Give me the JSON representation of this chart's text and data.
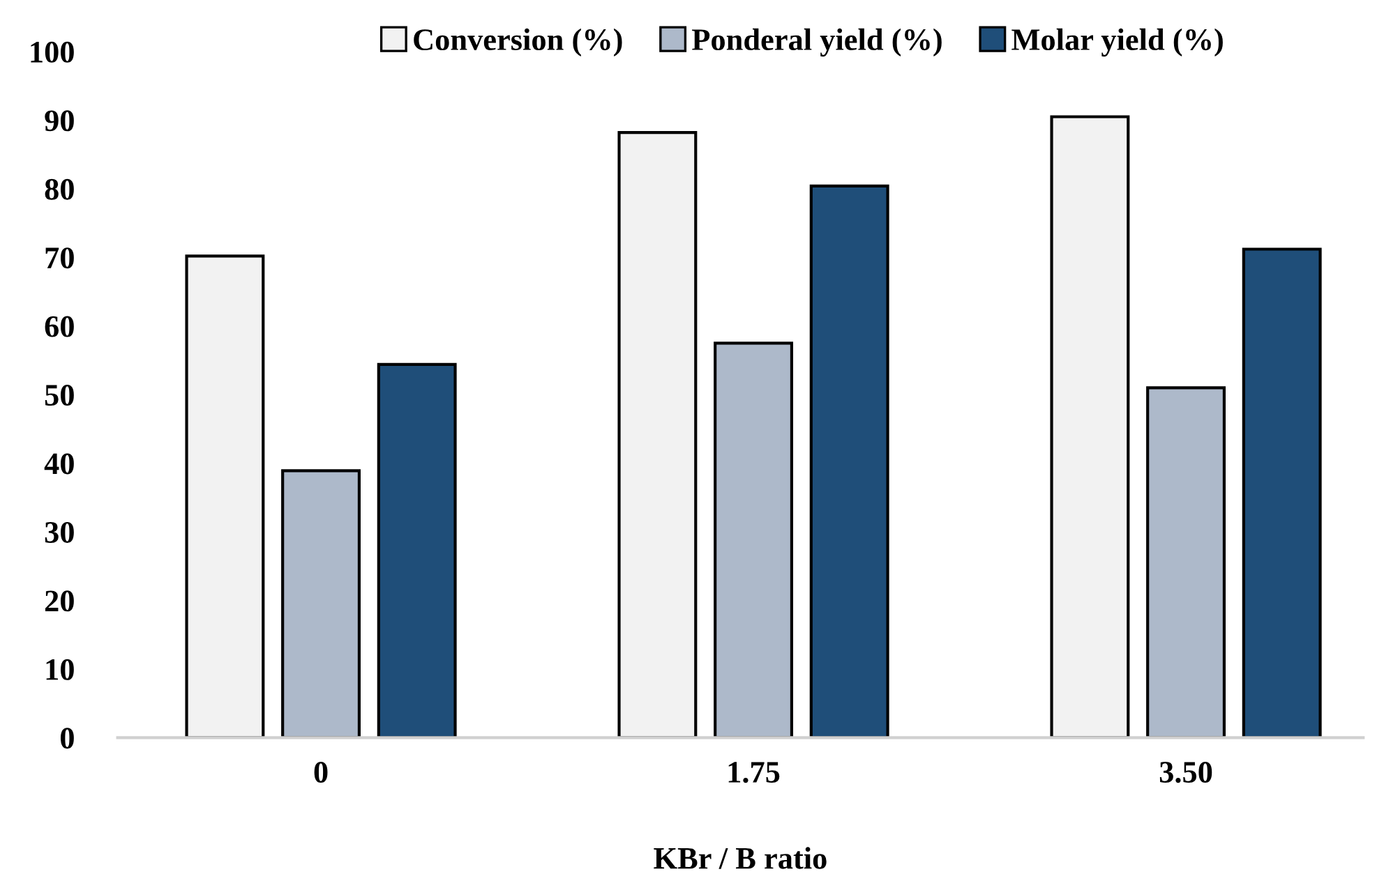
{
  "chart_data": {
    "type": "bar",
    "xlabel": "KBr / B ratio",
    "categories": [
      "0",
      "1.75",
      "3.50"
    ],
    "series": [
      {
        "name": "Conversion (%)",
        "color": "#f2f2f2",
        "values": [
          70.2,
          88.2,
          90.5
        ]
      },
      {
        "name": "Ponderal yield (%)",
        "color": "#adb9ca",
        "values": [
          38.9,
          57.5,
          51.0
        ]
      },
      {
        "name": "Molar yield (%)",
        "color": "#1f4e79",
        "values": [
          54.4,
          80.4,
          71.2
        ]
      }
    ],
    "ylim": [
      0,
      100
    ],
    "yticks": [
      0,
      10,
      20,
      30,
      40,
      50,
      60,
      70,
      80,
      90,
      100
    ],
    "grid": false,
    "legend": "top"
  }
}
